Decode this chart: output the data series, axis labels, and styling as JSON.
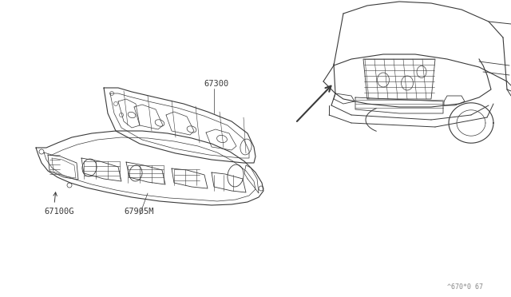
{
  "bg_color": "#ffffff",
  "line_color": "#3a3a3a",
  "text_color": "#3a3a3a",
  "fig_width": 6.4,
  "fig_height": 3.72,
  "dpi": 100,
  "watermark": "^670*0 67"
}
